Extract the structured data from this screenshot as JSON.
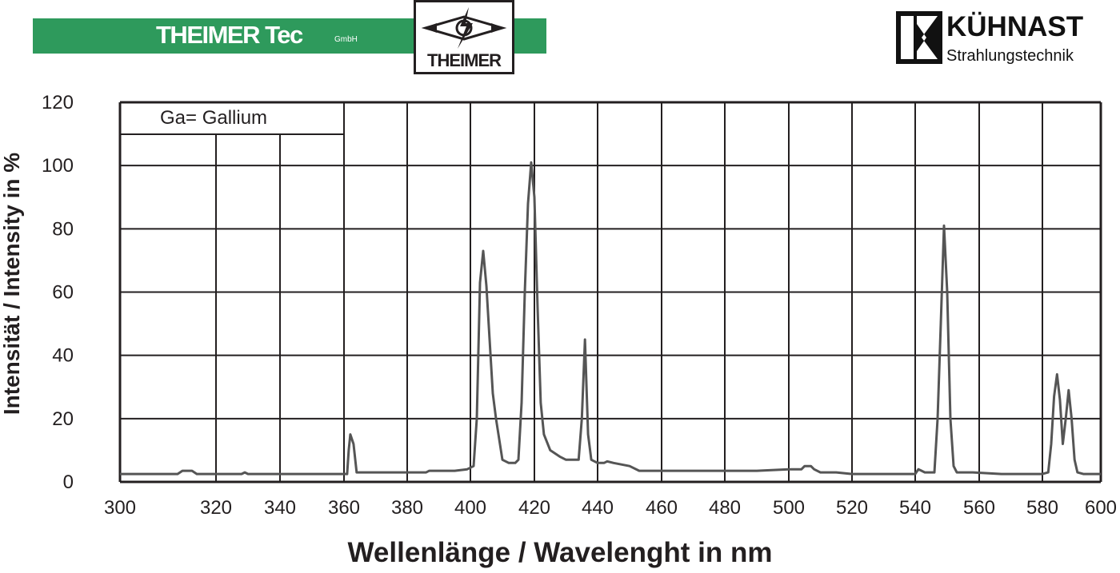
{
  "header": {
    "brand_name": "THEIMER Tec",
    "brand_suffix": "GmbH",
    "brand_color": "#2e9a5c",
    "logo_text": "THEIMER",
    "partner_name": "KÜHNAST",
    "partner_subtitle": "Strahlungstechnik"
  },
  "chart_data": {
    "type": "line",
    "legend": "Ga= Gallium",
    "xlabel": "Wellenlänge / Wavelenght in nm",
    "ylabel": "Intensität / Intensity in %",
    "xlim": [
      300,
      600
    ],
    "ylim": [
      0,
      120
    ],
    "x_ticks": [
      300,
      320,
      340,
      360,
      380,
      400,
      420,
      440,
      460,
      480,
      500,
      520,
      540,
      560,
      580,
      600
    ],
    "y_ticks": [
      0,
      20,
      40,
      60,
      80,
      100,
      120
    ],
    "grid": true,
    "line_color": "#555555",
    "series": [
      {
        "x": [
          300,
          312,
          313,
          315,
          316,
          328,
          329,
          330,
          361,
          361.5,
          362,
          363,
          364,
          367,
          380,
          386,
          387,
          395,
          399,
          401,
          402,
          403,
          404,
          405,
          406,
          407,
          408,
          410,
          412,
          414,
          415,
          416,
          417,
          418,
          419,
          420,
          421,
          422,
          423,
          425,
          428,
          430,
          434,
          435,
          436,
          437,
          438,
          440,
          442,
          443,
          445,
          450,
          453,
          470,
          480,
          490,
          500,
          504,
          505,
          507,
          508,
          510,
          515,
          520,
          540,
          541,
          542,
          543,
          546,
          547,
          548,
          549,
          550,
          551,
          552,
          553,
          558,
          567,
          580,
          582,
          583,
          584,
          585,
          586,
          587,
          588,
          589,
          590,
          591,
          592,
          594,
          597,
          600
        ],
        "y": [
          2.5,
          2.5,
          3.5,
          3.5,
          2.5,
          2.5,
          3,
          2.5,
          2.5,
          10,
          15,
          12,
          3,
          3,
          3,
          3,
          3.5,
          3.5,
          4,
          5,
          20,
          63,
          73,
          62,
          45,
          28,
          20,
          7,
          6,
          6,
          7,
          25,
          60,
          88,
          101,
          90,
          55,
          25,
          15,
          10,
          8,
          7,
          7,
          20,
          45,
          15,
          7,
          6,
          6,
          6.5,
          6,
          5,
          3.5,
          3.5,
          3.5,
          3.5,
          4,
          4,
          5,
          5,
          4,
          3,
          3,
          2.5,
          2.5,
          4,
          3.5,
          3,
          3,
          20,
          50,
          81,
          60,
          20,
          5,
          3,
          3,
          2.5,
          2.5,
          3,
          12,
          27,
          34,
          26,
          12,
          20,
          29,
          20,
          7,
          3,
          2.5,
          2.5,
          2.5
        ]
      }
    ]
  }
}
